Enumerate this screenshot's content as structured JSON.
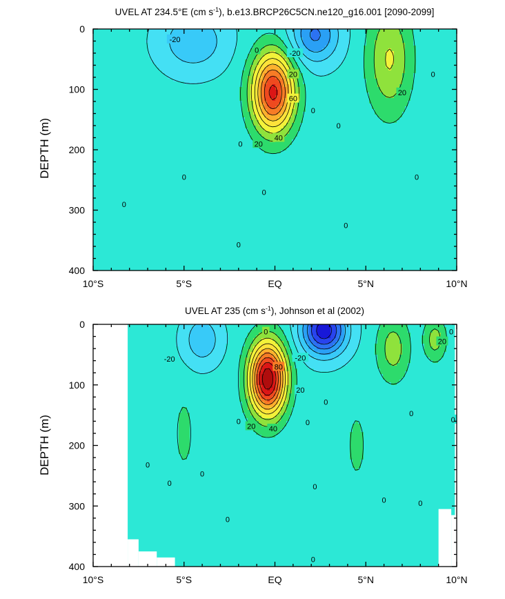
{
  "chart_data": [
    {
      "type": "contour",
      "title": "UVEL AT 234.5°E (cm s",
      "title_sup": "-1",
      "title_rest": "), b.e13.BRCP26C5CN.ne120_g16.001 [2090-2099]",
      "ylabel": "DEPTH (m)",
      "xlim": [
        -10,
        10
      ],
      "ylim": [
        400,
        0
      ],
      "xticks": [
        -10,
        -5,
        0,
        5,
        10
      ],
      "xtick_labels": [
        "10°S",
        "5°S",
        "EQ",
        "5°N",
        "10°N"
      ],
      "yticks": [
        0,
        100,
        200,
        300,
        400
      ],
      "ytick_labels": [
        "0",
        "100",
        "200",
        "300",
        "400"
      ],
      "contour_interval": 10,
      "blobs": [
        {
          "lat": -0.1,
          "depth": 105,
          "value": 80,
          "lat_scale": 1.15,
          "depth_scale": 65,
          "kind": "eastward"
        },
        {
          "lat": 6.3,
          "depth": 50,
          "value": 28,
          "lat_scale": 1.2,
          "depth_scale": 90,
          "kind": "eastward"
        },
        {
          "lat": 2.2,
          "depth": 10,
          "value": -35,
          "lat_scale": 1.3,
          "depth_scale": 45,
          "kind": "westward"
        },
        {
          "lat": -4.5,
          "depth": 20,
          "value": -22,
          "lat_scale": 1.8,
          "depth_scale": 50,
          "kind": "westward"
        }
      ],
      "contour_labels": [
        {
          "lat": -5.5,
          "depth": 17,
          "text": "-20"
        },
        {
          "lat": 1.1,
          "depth": 40,
          "text": "-20"
        },
        {
          "lat": -1.0,
          "depth": 35,
          "text": "0"
        },
        {
          "lat": 1.0,
          "depth": 75,
          "text": "20"
        },
        {
          "lat": 1.0,
          "depth": 115,
          "text": "60"
        },
        {
          "lat": 0.2,
          "depth": 180,
          "text": "40"
        },
        {
          "lat": -0.9,
          "depth": 190,
          "text": "20"
        },
        {
          "lat": -1.9,
          "depth": 190,
          "text": "0"
        },
        {
          "lat": 2.1,
          "depth": 135,
          "text": "0"
        },
        {
          "lat": 3.5,
          "depth": 160,
          "text": "0"
        },
        {
          "lat": 7.0,
          "depth": 105,
          "text": "20"
        },
        {
          "lat": 8.7,
          "depth": 75,
          "text": "0"
        },
        {
          "lat": -5.0,
          "depth": 245,
          "text": "0"
        },
        {
          "lat": -8.3,
          "depth": 290,
          "text": "0"
        },
        {
          "lat": -0.6,
          "depth": 270,
          "text": "0"
        },
        {
          "lat": 7.8,
          "depth": 245,
          "text": "0"
        },
        {
          "lat": 3.9,
          "depth": 325,
          "text": "0"
        },
        {
          "lat": -2.0,
          "depth": 357,
          "text": "0"
        }
      ]
    },
    {
      "type": "contour",
      "title": "UVEL AT 235 (cm s",
      "title_sup": "-1",
      "title_rest": "), Johnson et al (2002)",
      "ylabel": "DEPTH (m)",
      "xlim": [
        -10,
        10
      ],
      "ylim": [
        400,
        0
      ],
      "xticks": [
        -10,
        -5,
        0,
        5,
        10
      ],
      "xtick_labels": [
        "10°S",
        "5°S",
        "EQ",
        "5°N",
        "10°N"
      ],
      "yticks": [
        0,
        100,
        200,
        300,
        400
      ],
      "ytick_labels": [
        "0",
        "100",
        "200",
        "300",
        "400"
      ],
      "contour_interval": 10,
      "blobs": [
        {
          "lat": -0.4,
          "depth": 90,
          "value": 95,
          "lat_scale": 1.0,
          "depth_scale": 60,
          "kind": "eastward"
        },
        {
          "lat": 2.7,
          "depth": 10,
          "value": -60,
          "lat_scale": 1.2,
          "depth_scale": 40,
          "kind": "westward"
        },
        {
          "lat": 6.5,
          "depth": 40,
          "value": 22,
          "lat_scale": 0.9,
          "depth_scale": 55,
          "kind": "eastward"
        },
        {
          "lat": 8.8,
          "depth": 25,
          "value": 22,
          "lat_scale": 0.6,
          "depth_scale": 35,
          "kind": "eastward"
        },
        {
          "lat": -4.0,
          "depth": 25,
          "value": -22,
          "lat_scale": 1.0,
          "depth_scale": 40,
          "kind": "westward"
        },
        {
          "lat": -5.0,
          "depth": 180,
          "value": 12,
          "lat_scale": 0.5,
          "depth_scale": 60,
          "kind": "eastward"
        },
        {
          "lat": 4.5,
          "depth": 200,
          "value": 10,
          "lat_scale": 0.6,
          "depth_scale": 70,
          "kind": "eastward"
        }
      ],
      "contour_labels": [
        {
          "lat": -5.8,
          "depth": 57,
          "text": "-20"
        },
        {
          "lat": 1.4,
          "depth": 55,
          "text": "-20"
        },
        {
          "lat": -0.5,
          "depth": 12,
          "text": "0"
        },
        {
          "lat": 0.2,
          "depth": 70,
          "text": "80"
        },
        {
          "lat": 1.4,
          "depth": 108,
          "text": "20"
        },
        {
          "lat": -0.1,
          "depth": 172,
          "text": "40"
        },
        {
          "lat": -1.3,
          "depth": 168,
          "text": "20"
        },
        {
          "lat": -2.0,
          "depth": 160,
          "text": "0"
        },
        {
          "lat": 2.8,
          "depth": 128,
          "text": "0"
        },
        {
          "lat": 1.8,
          "depth": 162,
          "text": "0"
        },
        {
          "lat": 9.2,
          "depth": 28,
          "text": "20"
        },
        {
          "lat": 9.7,
          "depth": 12,
          "text": "0"
        },
        {
          "lat": 7.5,
          "depth": 147,
          "text": "0"
        },
        {
          "lat": 9.8,
          "depth": 157,
          "text": "0"
        },
        {
          "lat": -7.0,
          "depth": 232,
          "text": "0"
        },
        {
          "lat": -5.8,
          "depth": 262,
          "text": "0"
        },
        {
          "lat": -4.0,
          "depth": 247,
          "text": "0"
        },
        {
          "lat": 6.0,
          "depth": 290,
          "text": "0"
        },
        {
          "lat": 8.0,
          "depth": 295,
          "text": "0"
        },
        {
          "lat": 2.2,
          "depth": 268,
          "text": "0"
        },
        {
          "lat": -2.6,
          "depth": 322,
          "text": "0"
        },
        {
          "lat": 2.1,
          "depth": 388,
          "text": "0"
        }
      ]
    }
  ]
}
